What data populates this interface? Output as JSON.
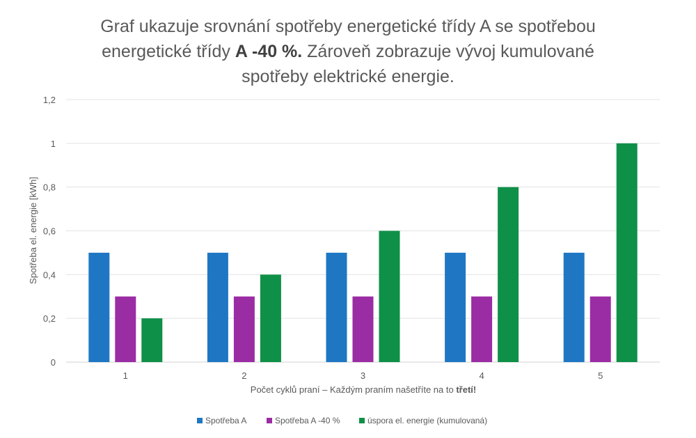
{
  "chart_data": {
    "type": "bar",
    "title_parts": [
      {
        "text": "Graf ukazuje srovnání spotřeby energetické třídy A se spotřebou energetické třídy ",
        "bold": false
      },
      {
        "text": "A -40 %.",
        "bold": true
      },
      {
        "text": " Zároveň zobrazuje vývoj kumulované spotřeby elektrické energie.",
        "bold": false
      }
    ],
    "xlabel_parts": [
      {
        "text": "Počet cyklů praní – Každým praním našetříte na to ",
        "bold": false
      },
      {
        "text": "třetí!",
        "bold": true
      }
    ],
    "ylabel": "Spotřeba el. energie [kWh]",
    "categories": [
      "1",
      "2",
      "3",
      "4",
      "5"
    ],
    "ylim": [
      0,
      1.2
    ],
    "yticks": [
      "0",
      "0,2",
      "0,4",
      "0,6",
      "0,8",
      "1",
      "1,2"
    ],
    "grid": true,
    "legend_position": "bottom",
    "series": [
      {
        "name": "Spotřeba A",
        "color": "#1f77c4",
        "values": [
          0.5,
          0.5,
          0.5,
          0.5,
          0.5
        ]
      },
      {
        "name": "Spotřeba A -40 %",
        "color": "#9b2da4",
        "values": [
          0.3,
          0.3,
          0.3,
          0.3,
          0.3
        ]
      },
      {
        "name": "úspora el. energie (kumulovaná)",
        "color": "#0f9048",
        "values": [
          0.2,
          0.4,
          0.6,
          0.8,
          1.0
        ]
      }
    ]
  }
}
